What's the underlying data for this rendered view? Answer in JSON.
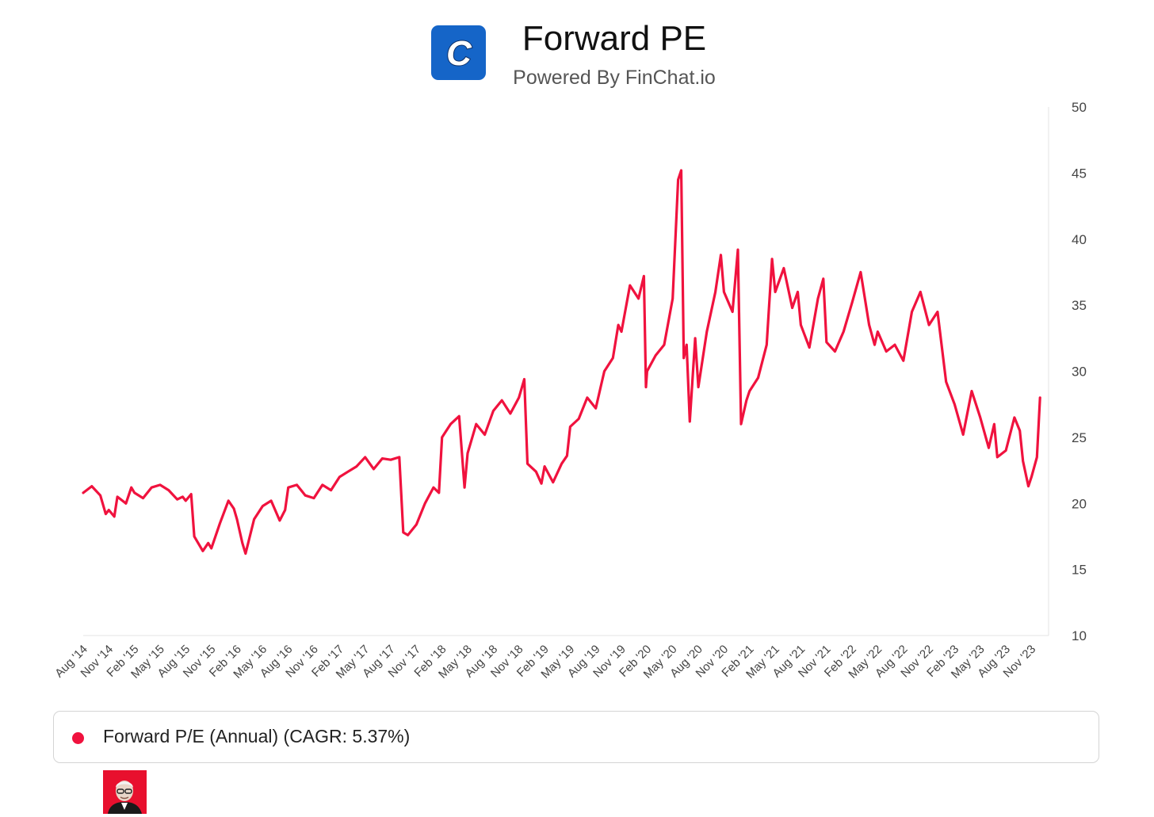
{
  "header": {
    "logo_letter": "C",
    "title": "Forward PE",
    "subtitle": "Powered By FinChat.io"
  },
  "legend": {
    "label": "Forward P/E (Annual) (CAGR: 5.37%)"
  },
  "colors": {
    "series": "#f0123e",
    "logo_bg": "#1565c8",
    "axis": "#e3e3e3",
    "tick_text": "#444444"
  },
  "chart_data": {
    "type": "line",
    "title": "Forward PE",
    "xlabel": "",
    "ylabel": "",
    "y_axis_side": "right",
    "ylim": [
      10,
      50
    ],
    "yticks": [
      10,
      15,
      20,
      25,
      30,
      35,
      40,
      45,
      50
    ],
    "x_tick_labels": [
      "Aug '14",
      "Nov '14",
      "Feb '15",
      "May '15",
      "Aug '15",
      "Nov '15",
      "Feb '16",
      "May '16",
      "Aug '16",
      "Nov '16",
      "Feb '17",
      "May '17",
      "Aug '17",
      "Nov '17",
      "Feb '18",
      "May '18",
      "Aug '18",
      "Nov '18",
      "Feb '19",
      "May '19",
      "Aug '19",
      "Nov '19",
      "Feb '20",
      "May '20",
      "Aug '20",
      "Nov '20",
      "Feb '21",
      "May '21",
      "Aug '21",
      "Nov '21",
      "Feb '22",
      "May '22",
      "Aug '22",
      "Nov '22",
      "Feb '23",
      "May '23",
      "Aug '23",
      "Nov '23"
    ],
    "x_range": [
      "2014-08",
      "2024-01"
    ],
    "series": [
      {
        "name": "Forward P/E (Annual)",
        "cagr": "5.37%",
        "points": [
          [
            "2014-08",
            20.8
          ],
          [
            "2014-09",
            21.3
          ],
          [
            "2014-10",
            20.6
          ],
          [
            "2014-10-20",
            19.2
          ],
          [
            "2014-11",
            19.5
          ],
          [
            "2014-11-20",
            19.0
          ],
          [
            "2014-12",
            20.5
          ],
          [
            "2015-01",
            20.0
          ],
          [
            "2015-01-20",
            21.2
          ],
          [
            "2015-02",
            20.8
          ],
          [
            "2015-03",
            20.4
          ],
          [
            "2015-04",
            21.2
          ],
          [
            "2015-05",
            21.4
          ],
          [
            "2015-06",
            21.0
          ],
          [
            "2015-07",
            20.3
          ],
          [
            "2015-07-20",
            20.5
          ],
          [
            "2015-08",
            20.2
          ],
          [
            "2015-08-20",
            20.7
          ],
          [
            "2015-09",
            17.5
          ],
          [
            "2015-10",
            16.4
          ],
          [
            "2015-10-20",
            17.0
          ],
          [
            "2015-11",
            16.6
          ],
          [
            "2015-12",
            18.5
          ],
          [
            "2016-01",
            20.2
          ],
          [
            "2016-01-20",
            19.6
          ],
          [
            "2016-02",
            18.8
          ],
          [
            "2016-02-20",
            17.0
          ],
          [
            "2016-03",
            16.2
          ],
          [
            "2016-04",
            18.8
          ],
          [
            "2016-05",
            19.8
          ],
          [
            "2016-06",
            20.2
          ],
          [
            "2016-07",
            18.7
          ],
          [
            "2016-07-20",
            19.5
          ],
          [
            "2016-08",
            21.2
          ],
          [
            "2016-09",
            21.4
          ],
          [
            "2016-10",
            20.6
          ],
          [
            "2016-11",
            20.4
          ],
          [
            "2016-12",
            21.4
          ],
          [
            "2017-01",
            21.0
          ],
          [
            "2017-02",
            22.0
          ],
          [
            "2017-03",
            22.4
          ],
          [
            "2017-04",
            22.8
          ],
          [
            "2017-05",
            23.5
          ],
          [
            "2017-06",
            22.6
          ],
          [
            "2017-07",
            23.4
          ],
          [
            "2017-08",
            23.3
          ],
          [
            "2017-09",
            23.5
          ],
          [
            "2017-09-15",
            17.8
          ],
          [
            "2017-10",
            17.6
          ],
          [
            "2017-11",
            18.4
          ],
          [
            "2017-12",
            20.0
          ],
          [
            "2018-01",
            21.2
          ],
          [
            "2018-01-20",
            20.8
          ],
          [
            "2018-02",
            25.0
          ],
          [
            "2018-03",
            26.0
          ],
          [
            "2018-04",
            26.6
          ],
          [
            "2018-04-20",
            21.2
          ],
          [
            "2018-05",
            23.8
          ],
          [
            "2018-06",
            26.0
          ],
          [
            "2018-07",
            25.2
          ],
          [
            "2018-08",
            27.0
          ],
          [
            "2018-09",
            27.8
          ],
          [
            "2018-10",
            26.8
          ],
          [
            "2018-11",
            28.0
          ],
          [
            "2018-11-20",
            29.4
          ],
          [
            "2018-12",
            23.0
          ],
          [
            "2019-01",
            22.4
          ],
          [
            "2019-01-20",
            21.5
          ],
          [
            "2019-02",
            22.8
          ],
          [
            "2019-03",
            21.6
          ],
          [
            "2019-04",
            23.0
          ],
          [
            "2019-04-20",
            23.6
          ],
          [
            "2019-05",
            25.8
          ],
          [
            "2019-06",
            26.4
          ],
          [
            "2019-07",
            28.0
          ],
          [
            "2019-08",
            27.2
          ],
          [
            "2019-08-20",
            29.0
          ],
          [
            "2019-09",
            30.0
          ],
          [
            "2019-10",
            31.0
          ],
          [
            "2019-10-20",
            33.5
          ],
          [
            "2019-11",
            33.0
          ],
          [
            "2019-12",
            36.5
          ],
          [
            "2020-01",
            35.5
          ],
          [
            "2020-01-20",
            37.2
          ],
          [
            "2020-01-27",
            28.8
          ],
          [
            "2020-02",
            30.0
          ],
          [
            "2020-03",
            31.2
          ],
          [
            "2020-04",
            32.0
          ],
          [
            "2020-05",
            35.5
          ],
          [
            "2020-05-20",
            44.5
          ],
          [
            "2020-06",
            45.2
          ],
          [
            "2020-06-10",
            31.0
          ],
          [
            "2020-06-20",
            32.0
          ],
          [
            "2020-07",
            26.2
          ],
          [
            "2020-07-20",
            32.5
          ],
          [
            "2020-08",
            28.8
          ],
          [
            "2020-09",
            33.0
          ],
          [
            "2020-10",
            36.0
          ],
          [
            "2020-10-20",
            38.8
          ],
          [
            "2020-11",
            36.0
          ],
          [
            "2020-12",
            34.5
          ],
          [
            "2020-12-20",
            39.2
          ],
          [
            "2021-01",
            26.0
          ],
          [
            "2021-01-20",
            27.8
          ],
          [
            "2021-02",
            28.5
          ],
          [
            "2021-03",
            29.5
          ],
          [
            "2021-04",
            32.0
          ],
          [
            "2021-04-20",
            38.5
          ],
          [
            "2021-05",
            36.0
          ],
          [
            "2021-06",
            37.8
          ],
          [
            "2021-07",
            34.8
          ],
          [
            "2021-07-20",
            36.0
          ],
          [
            "2021-08",
            33.5
          ],
          [
            "2021-09",
            31.8
          ],
          [
            "2021-10",
            35.5
          ],
          [
            "2021-10-20",
            37.0
          ],
          [
            "2021-11",
            32.2
          ],
          [
            "2021-12",
            31.5
          ],
          [
            "2022-01",
            33.0
          ],
          [
            "2022-02",
            35.2
          ],
          [
            "2022-03",
            37.5
          ],
          [
            "2022-04",
            33.5
          ],
          [
            "2022-04-20",
            32.0
          ],
          [
            "2022-05",
            33.0
          ],
          [
            "2022-06",
            31.5
          ],
          [
            "2022-07",
            32.0
          ],
          [
            "2022-08",
            30.8
          ],
          [
            "2022-09",
            34.5
          ],
          [
            "2022-10",
            36.0
          ],
          [
            "2022-11",
            33.5
          ],
          [
            "2022-12",
            34.5
          ],
          [
            "2023-01",
            29.2
          ],
          [
            "2023-02",
            27.5
          ],
          [
            "2023-03",
            25.2
          ],
          [
            "2023-04",
            28.5
          ],
          [
            "2023-05",
            26.5
          ],
          [
            "2023-06",
            24.2
          ],
          [
            "2023-06-20",
            26.0
          ],
          [
            "2023-07",
            23.5
          ],
          [
            "2023-08",
            24.0
          ],
          [
            "2023-09",
            26.5
          ],
          [
            "2023-09-20",
            25.5
          ],
          [
            "2023-10",
            23.2
          ],
          [
            "2023-10-20",
            21.3
          ],
          [
            "2023-11",
            22.0
          ],
          [
            "2023-11-20",
            23.5
          ],
          [
            "2023-12",
            28.0
          ]
        ]
      }
    ]
  }
}
